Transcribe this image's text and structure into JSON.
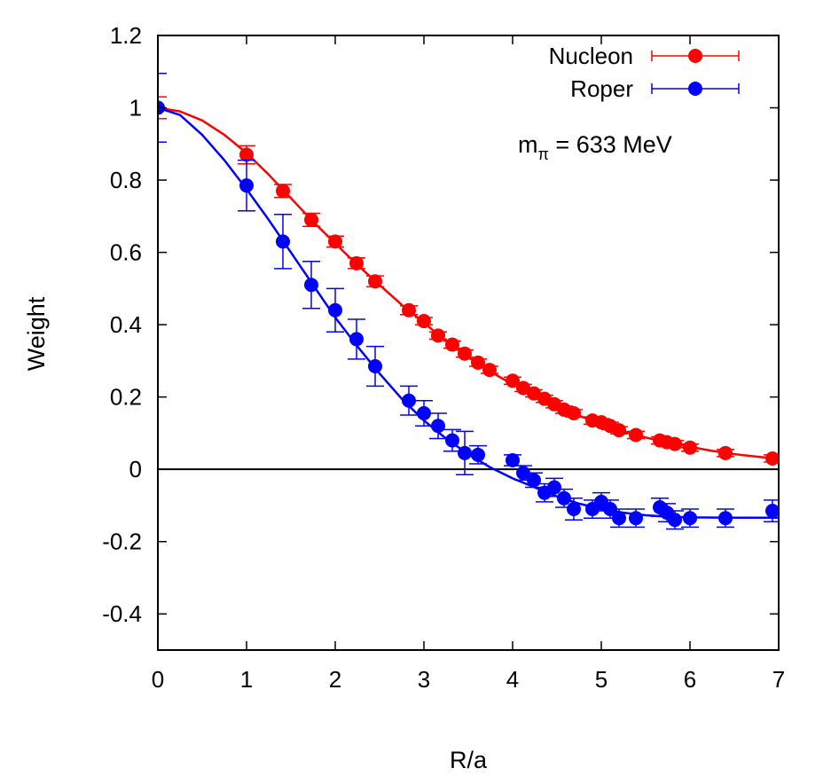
{
  "chart_data": {
    "type": "scatter",
    "title": "",
    "xlabel": "R/a",
    "ylabel": "Weight",
    "xlim": [
      0,
      7
    ],
    "ylim": [
      -0.5,
      1.2
    ],
    "xticks": [
      0,
      1,
      2,
      3,
      4,
      5,
      6,
      7
    ],
    "yticks": [
      -0.4,
      -0.2,
      0,
      0.2,
      0.4,
      0.6,
      0.8,
      1,
      1.2
    ],
    "ytick_labels": [
      "-0.4",
      "-0.2",
      "0",
      "0.2",
      "0.4",
      "0.6",
      "0.8",
      "1",
      "1.2"
    ],
    "grid": false,
    "zero_line": true,
    "legend_position": "top-right",
    "annotation": {
      "main": "m",
      "sub": "π",
      "rest": " = 633 MeV"
    },
    "series": [
      {
        "name": "Nucleon",
        "color": "#ff0000",
        "points": [
          {
            "x": 0,
            "y": 1.0,
            "err": 0.03
          },
          {
            "x": 1.0,
            "y": 0.87,
            "err": 0.025
          },
          {
            "x": 1.41,
            "y": 0.77,
            "err": 0.018
          },
          {
            "x": 1.73,
            "y": 0.69,
            "err": 0.018
          },
          {
            "x": 2.0,
            "y": 0.63,
            "err": 0.015
          },
          {
            "x": 2.24,
            "y": 0.57,
            "err": 0.015
          },
          {
            "x": 2.45,
            "y": 0.52,
            "err": 0.015
          },
          {
            "x": 2.83,
            "y": 0.44,
            "err": 0.012
          },
          {
            "x": 3.0,
            "y": 0.41,
            "err": 0.01
          },
          {
            "x": 3.16,
            "y": 0.37,
            "err": 0.01
          },
          {
            "x": 3.32,
            "y": 0.345,
            "err": 0.01
          },
          {
            "x": 3.46,
            "y": 0.32,
            "err": 0.01
          },
          {
            "x": 3.61,
            "y": 0.295,
            "err": 0.01
          },
          {
            "x": 3.74,
            "y": 0.275,
            "err": 0.01
          },
          {
            "x": 4.0,
            "y": 0.245,
            "err": 0.01
          },
          {
            "x": 4.12,
            "y": 0.225,
            "err": 0.01
          },
          {
            "x": 4.24,
            "y": 0.21,
            "err": 0.01
          },
          {
            "x": 4.36,
            "y": 0.195,
            "err": 0.01
          },
          {
            "x": 4.47,
            "y": 0.18,
            "err": 0.01
          },
          {
            "x": 4.58,
            "y": 0.165,
            "err": 0.01
          },
          {
            "x": 4.69,
            "y": 0.155,
            "err": 0.01
          },
          {
            "x": 4.9,
            "y": 0.135,
            "err": 0.01
          },
          {
            "x": 5.0,
            "y": 0.13,
            "err": 0.01
          },
          {
            "x": 5.1,
            "y": 0.12,
            "err": 0.01
          },
          {
            "x": 5.2,
            "y": 0.108,
            "err": 0.01
          },
          {
            "x": 5.39,
            "y": 0.095,
            "err": 0.01
          },
          {
            "x": 5.66,
            "y": 0.08,
            "err": 0.01
          },
          {
            "x": 5.74,
            "y": 0.075,
            "err": 0.01
          },
          {
            "x": 5.83,
            "y": 0.07,
            "err": 0.01
          },
          {
            "x": 6.0,
            "y": 0.06,
            "err": 0.01
          },
          {
            "x": 6.4,
            "y": 0.045,
            "err": 0.01
          },
          {
            "x": 6.93,
            "y": 0.03,
            "err": 0.01
          }
        ],
        "curve": [
          {
            "x": 0,
            "y": 1.0
          },
          {
            "x": 0.25,
            "y": 0.99
          },
          {
            "x": 0.5,
            "y": 0.965
          },
          {
            "x": 0.75,
            "y": 0.925
          },
          {
            "x": 1.0,
            "y": 0.875
          },
          {
            "x": 1.25,
            "y": 0.815
          },
          {
            "x": 1.5,
            "y": 0.75
          },
          {
            "x": 1.75,
            "y": 0.685
          },
          {
            "x": 2.0,
            "y": 0.625
          },
          {
            "x": 2.25,
            "y": 0.565
          },
          {
            "x": 2.5,
            "y": 0.51
          },
          {
            "x": 2.75,
            "y": 0.455
          },
          {
            "x": 3.0,
            "y": 0.405
          },
          {
            "x": 3.25,
            "y": 0.355
          },
          {
            "x": 3.5,
            "y": 0.31
          },
          {
            "x": 3.75,
            "y": 0.27
          },
          {
            "x": 4.0,
            "y": 0.235
          },
          {
            "x": 4.25,
            "y": 0.205
          },
          {
            "x": 4.5,
            "y": 0.175
          },
          {
            "x": 4.75,
            "y": 0.148
          },
          {
            "x": 5.0,
            "y": 0.125
          },
          {
            "x": 5.25,
            "y": 0.105
          },
          {
            "x": 5.5,
            "y": 0.088
          },
          {
            "x": 5.75,
            "y": 0.074
          },
          {
            "x": 6.0,
            "y": 0.062
          },
          {
            "x": 6.25,
            "y": 0.051
          },
          {
            "x": 6.5,
            "y": 0.042
          },
          {
            "x": 6.75,
            "y": 0.035
          },
          {
            "x": 7.0,
            "y": 0.029
          }
        ]
      },
      {
        "name": "Roper",
        "color": "#0000ff",
        "points": [
          {
            "x": 0,
            "y": 1.0,
            "err": 0.095
          },
          {
            "x": 1.0,
            "y": 0.785,
            "err": 0.07
          },
          {
            "x": 1.41,
            "y": 0.63,
            "err": 0.075
          },
          {
            "x": 1.73,
            "y": 0.51,
            "err": 0.065
          },
          {
            "x": 2.0,
            "y": 0.44,
            "err": 0.06
          },
          {
            "x": 2.24,
            "y": 0.36,
            "err": 0.055
          },
          {
            "x": 2.45,
            "y": 0.285,
            "err": 0.055
          },
          {
            "x": 2.83,
            "y": 0.19,
            "err": 0.04
          },
          {
            "x": 3.0,
            "y": 0.155,
            "err": 0.035
          },
          {
            "x": 3.16,
            "y": 0.12,
            "err": 0.035
          },
          {
            "x": 3.32,
            "y": 0.08,
            "err": 0.03
          },
          {
            "x": 3.46,
            "y": 0.045,
            "err": 0.06
          },
          {
            "x": 3.61,
            "y": 0.04,
            "err": 0.025
          },
          {
            "x": 4.0,
            "y": 0.025,
            "err": 0.015
          },
          {
            "x": 4.12,
            "y": -0.01,
            "err": 0.02
          },
          {
            "x": 4.24,
            "y": -0.03,
            "err": 0.02
          },
          {
            "x": 4.36,
            "y": -0.065,
            "err": 0.025
          },
          {
            "x": 4.47,
            "y": -0.05,
            "err": 0.025
          },
          {
            "x": 4.58,
            "y": -0.08,
            "err": 0.025
          },
          {
            "x": 4.69,
            "y": -0.11,
            "err": 0.03
          },
          {
            "x": 4.9,
            "y": -0.11,
            "err": 0.025
          },
          {
            "x": 5.0,
            "y": -0.09,
            "err": 0.025
          },
          {
            "x": 5.1,
            "y": -0.11,
            "err": 0.025
          },
          {
            "x": 5.2,
            "y": -0.135,
            "err": 0.025
          },
          {
            "x": 5.39,
            "y": -0.135,
            "err": 0.025
          },
          {
            "x": 5.66,
            "y": -0.105,
            "err": 0.025
          },
          {
            "x": 5.74,
            "y": -0.12,
            "err": 0.025
          },
          {
            "x": 5.83,
            "y": -0.14,
            "err": 0.025
          },
          {
            "x": 6.0,
            "y": -0.135,
            "err": 0.025
          },
          {
            "x": 6.4,
            "y": -0.135,
            "err": 0.025
          },
          {
            "x": 6.93,
            "y": -0.115,
            "err": 0.03
          }
        ],
        "curve": [
          {
            "x": 0,
            "y": 1.0
          },
          {
            "x": 0.25,
            "y": 0.98
          },
          {
            "x": 0.5,
            "y": 0.925
          },
          {
            "x": 0.75,
            "y": 0.855
          },
          {
            "x": 1.0,
            "y": 0.775
          },
          {
            "x": 1.25,
            "y": 0.69
          },
          {
            "x": 1.5,
            "y": 0.6
          },
          {
            "x": 1.75,
            "y": 0.51
          },
          {
            "x": 2.0,
            "y": 0.42
          },
          {
            "x": 2.25,
            "y": 0.34
          },
          {
            "x": 2.5,
            "y": 0.265
          },
          {
            "x": 2.75,
            "y": 0.195
          },
          {
            "x": 3.0,
            "y": 0.135
          },
          {
            "x": 3.25,
            "y": 0.085
          },
          {
            "x": 3.5,
            "y": 0.042
          },
          {
            "x": 3.75,
            "y": 0.005
          },
          {
            "x": 4.0,
            "y": -0.025
          },
          {
            "x": 4.25,
            "y": -0.05
          },
          {
            "x": 4.5,
            "y": -0.075
          },
          {
            "x": 4.75,
            "y": -0.095
          },
          {
            "x": 5.0,
            "y": -0.11
          },
          {
            "x": 5.25,
            "y": -0.12
          },
          {
            "x": 5.5,
            "y": -0.127
          },
          {
            "x": 5.75,
            "y": -0.131
          },
          {
            "x": 6.0,
            "y": -0.133
          },
          {
            "x": 6.5,
            "y": -0.134
          },
          {
            "x": 7.0,
            "y": -0.134
          }
        ]
      }
    ]
  }
}
